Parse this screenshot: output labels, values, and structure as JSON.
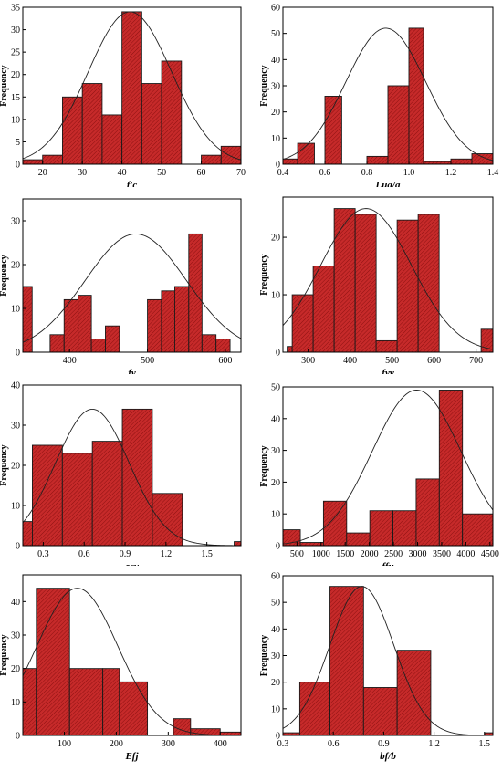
{
  "chart_data": [
    {
      "type": "bar",
      "xlabel": "f'c",
      "ylabel": "Frequency",
      "xlim": [
        15,
        70
      ],
      "ylim": [
        0,
        35
      ],
      "xticks": [
        20,
        30,
        40,
        50,
        60,
        70
      ],
      "yticks": [
        0,
        5,
        10,
        15,
        20,
        25,
        30,
        35
      ],
      "bins": [
        [
          15,
          20,
          1
        ],
        [
          20,
          25,
          2
        ],
        [
          25,
          30,
          15
        ],
        [
          30,
          35,
          18
        ],
        [
          35,
          40,
          11
        ],
        [
          40,
          45,
          34
        ],
        [
          45,
          50,
          18
        ],
        [
          50,
          55,
          23
        ],
        [
          60,
          65,
          2
        ],
        [
          65,
          70,
          4
        ]
      ],
      "curve": {
        "mean": 42,
        "sd": 10.5,
        "peak": 34
      }
    },
    {
      "type": "bar",
      "xlabel": "Lua/a",
      "ylabel": "Frequency",
      "xlim": [
        0.4,
        1.4
      ],
      "ylim": [
        0,
        60
      ],
      "xticks": [
        0.4,
        0.6,
        0.8,
        1.0,
        1.2,
        1.4
      ],
      "yticks": [
        0,
        10,
        20,
        30,
        40,
        50,
        60
      ],
      "bins": [
        [
          0.4,
          0.47,
          2
        ],
        [
          0.47,
          0.55,
          8
        ],
        [
          0.55,
          0.63,
          0
        ],
        [
          0.6,
          0.68,
          26
        ],
        [
          0.8,
          0.9,
          3
        ],
        [
          0.9,
          1.0,
          30
        ],
        [
          1.0,
          1.07,
          52
        ],
        [
          1.07,
          1.2,
          1
        ],
        [
          1.2,
          1.3,
          2
        ],
        [
          1.3,
          1.4,
          4
        ]
      ],
      "curve": {
        "mean": 0.89,
        "sd": 0.19,
        "peak": 52
      }
    },
    {
      "type": "bar",
      "xlabel": "fy",
      "ylabel": "Frequency",
      "xlim": [
        340,
        620
      ],
      "ylim": [
        0,
        35
      ],
      "xticks": [
        400,
        500,
        600
      ],
      "yticks": [
        0,
        10,
        20,
        30
      ],
      "bins": [
        [
          340,
          352,
          15
        ],
        [
          375,
          393,
          4
        ],
        [
          393,
          411,
          12
        ],
        [
          411,
          428,
          13
        ],
        [
          428,
          446,
          3
        ],
        [
          446,
          464,
          6
        ],
        [
          500,
          518,
          12
        ],
        [
          518,
          535,
          14
        ],
        [
          535,
          553,
          15
        ],
        [
          553,
          570,
          27
        ],
        [
          570,
          588,
          4
        ],
        [
          588,
          606,
          3
        ]
      ],
      "curve": {
        "mean": 485,
        "sd": 65,
        "peak": 27
      }
    },
    {
      "type": "bar",
      "xlabel": "fyv",
      "ylabel": "Frequency",
      "xlim": [
        240,
        740
      ],
      "ylim": [
        0,
        27
      ],
      "xticks": [
        300,
        400,
        500,
        600,
        700
      ],
      "yticks": [
        0,
        10,
        20
      ],
      "bins": [
        [
          250,
          262,
          1
        ],
        [
          262,
          312,
          10
        ],
        [
          312,
          362,
          15
        ],
        [
          362,
          412,
          25
        ],
        [
          412,
          462,
          24
        ],
        [
          462,
          512,
          2
        ],
        [
          512,
          562,
          23
        ],
        [
          562,
          612,
          24
        ],
        [
          712,
          740,
          4
        ]
      ],
      "curve": {
        "mean": 438,
        "sd": 108,
        "peak": 25
      }
    },
    {
      "type": "bar",
      "xlabel": "ρsv",
      "ylabel": "Frequency",
      "xlim": [
        0.15,
        1.75
      ],
      "ylim": [
        0,
        40
      ],
      "xticks": [
        0.3,
        0.6,
        0.9,
        1.2,
        1.5
      ],
      "yticks": [
        0,
        10,
        20,
        30,
        40
      ],
      "bins": [
        [
          0.14,
          0.22,
          6
        ],
        [
          0.22,
          0.44,
          25
        ],
        [
          0.44,
          0.66,
          23
        ],
        [
          0.66,
          0.88,
          26
        ],
        [
          0.88,
          1.1,
          34
        ],
        [
          1.1,
          1.32,
          13
        ],
        [
          1.7,
          1.76,
          1
        ]
      ],
      "curve": {
        "mean": 0.66,
        "sd": 0.27,
        "peak": 34
      }
    },
    {
      "type": "bar",
      "xlabel": "ffu",
      "ylabel": "Frequency",
      "xlim": [
        210,
        4560
      ],
      "ylim": [
        0,
        50
      ],
      "xticks": [
        500,
        1000,
        1500,
        2000,
        2500,
        3000,
        3500,
        4000,
        4500
      ],
      "yticks": [
        0,
        10,
        20,
        30,
        40,
        50
      ],
      "bins": [
        [
          210,
          570,
          5
        ],
        [
          570,
          1050,
          1
        ],
        [
          1050,
          1530,
          14
        ],
        [
          1530,
          2010,
          4
        ],
        [
          2010,
          2490,
          11
        ],
        [
          2490,
          2970,
          11
        ],
        [
          2970,
          3450,
          21
        ],
        [
          3450,
          3930,
          49
        ],
        [
          3930,
          4560,
          10
        ]
      ],
      "curve": {
        "mean": 2980,
        "sd": 920,
        "peak": 49
      }
    },
    {
      "type": "bar",
      "xlabel": "Efj",
      "ylabel": "Frequency",
      "xlim": [
        20,
        440
      ],
      "ylim": [
        0,
        48
      ],
      "xticks": [
        100,
        200,
        300,
        400
      ],
      "yticks": [
        0,
        10,
        20,
        30,
        40
      ],
      "bins": [
        [
          20,
          46,
          20
        ],
        [
          46,
          110,
          44
        ],
        [
          110,
          174,
          20
        ],
        [
          174,
          206,
          20
        ],
        [
          206,
          260,
          16
        ],
        [
          310,
          343,
          5
        ],
        [
          343,
          400,
          2
        ],
        [
          400,
          440,
          1
        ]
      ],
      "curve": {
        "mean": 125,
        "sd": 78,
        "peak": 44
      }
    },
    {
      "type": "bar",
      "xlabel": "bf/b",
      "ylabel": "Frequency",
      "xlim": [
        0.3,
        1.55
      ],
      "ylim": [
        0,
        60
      ],
      "xticks": [
        0.3,
        0.6,
        0.9,
        1.2,
        1.5
      ],
      "yticks": [
        0,
        10,
        20,
        30,
        40,
        50,
        60
      ],
      "bins": [
        [
          0.3,
          0.4,
          1
        ],
        [
          0.4,
          0.58,
          20
        ],
        [
          0.58,
          0.78,
          56
        ],
        [
          0.78,
          0.98,
          18
        ],
        [
          0.98,
          1.18,
          32
        ],
        [
          1.5,
          1.55,
          1
        ]
      ],
      "curve": {
        "mean": 0.77,
        "sd": 0.19,
        "peak": 56
      }
    }
  ]
}
